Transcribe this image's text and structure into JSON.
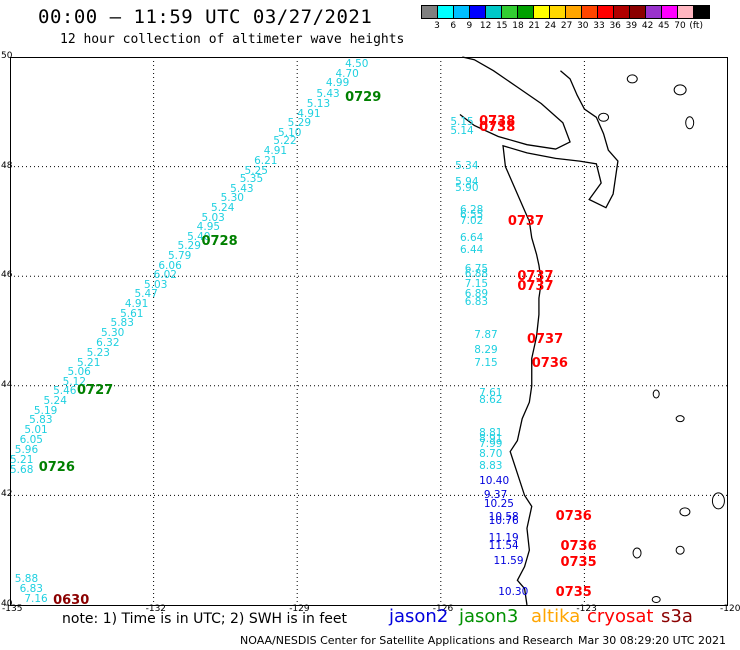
{
  "title": "00:00 – 11:59 UTC 03/27/2021",
  "subtitle": "12 hour collection of altimeter wave heights",
  "colorbar": {
    "colors": [
      "#808080",
      "#00ffff",
      "#00bfff",
      "#0000ff",
      "#00c8c8",
      "#32cd32",
      "#00a000",
      "#ffff00",
      "#ffd700",
      "#ffa500",
      "#ff4500",
      "#ff0000",
      "#b00000",
      "#8b0000",
      "#9932cc",
      "#ff00ff",
      "#ffb6c1",
      "#000000"
    ],
    "labels": [
      "3",
      "6",
      "9",
      "12",
      "15",
      "18",
      "21",
      "24",
      "27",
      "30",
      "33",
      "36",
      "39",
      "42",
      "45",
      "70"
    ],
    "unit": "(ft)"
  },
  "axes": {
    "lon_labels": [
      "-135",
      "-132",
      "-129",
      "-126",
      "-123",
      "-120"
    ],
    "lat_labels": [
      "50",
      "48",
      "46",
      "44",
      "42",
      "40"
    ],
    "lon_range": [
      -135,
      -120
    ],
    "lat_range": [
      40,
      50
    ]
  },
  "points": [
    {
      "v": "4.50",
      "lon": -128.0,
      "lat": 49.85,
      "c": "#1fd0e0"
    },
    {
      "v": "4.70",
      "lon": -128.2,
      "lat": 49.67,
      "c": "#1fd0e0"
    },
    {
      "v": "4.99",
      "lon": -128.4,
      "lat": 49.5,
      "c": "#1fd0e0"
    },
    {
      "v": "5.43",
      "lon": -128.6,
      "lat": 49.3,
      "c": "#1fd0e0"
    },
    {
      "v": "5.13",
      "lon": -128.8,
      "lat": 49.13,
      "c": "#1fd0e0"
    },
    {
      "v": "4.91",
      "lon": -129.0,
      "lat": 48.95,
      "c": "#1fd0e0"
    },
    {
      "v": "5.29",
      "lon": -129.2,
      "lat": 48.77,
      "c": "#1fd0e0"
    },
    {
      "v": "5.10",
      "lon": -129.4,
      "lat": 48.6,
      "c": "#1fd0e0"
    },
    {
      "v": "5.22",
      "lon": -129.5,
      "lat": 48.44,
      "c": "#1fd0e0"
    },
    {
      "v": "4.91",
      "lon": -129.7,
      "lat": 48.26,
      "c": "#1fd0e0"
    },
    {
      "v": "6.21",
      "lon": -129.9,
      "lat": 48.09,
      "c": "#1fd0e0"
    },
    {
      "v": "5.25",
      "lon": -130.1,
      "lat": 47.91,
      "c": "#1fd0e0"
    },
    {
      "v": "5.35",
      "lon": -130.2,
      "lat": 47.75,
      "c": "#1fd0e0"
    },
    {
      "v": "5.43",
      "lon": -130.4,
      "lat": 47.58,
      "c": "#1fd0e0"
    },
    {
      "v": "5.30",
      "lon": -130.6,
      "lat": 47.4,
      "c": "#1fd0e0"
    },
    {
      "v": "5.24",
      "lon": -130.8,
      "lat": 47.22,
      "c": "#1fd0e0"
    },
    {
      "v": "5.03",
      "lon": -131.0,
      "lat": 47.05,
      "c": "#1fd0e0"
    },
    {
      "v": "4.95",
      "lon": -131.1,
      "lat": 46.88,
      "c": "#1fd0e0"
    },
    {
      "v": "5.40",
      "lon": -131.3,
      "lat": 46.7,
      "c": "#1fd0e0"
    },
    {
      "v": "5.29",
      "lon": -131.5,
      "lat": 46.53,
      "c": "#1fd0e0"
    },
    {
      "v": "5.79",
      "lon": -131.7,
      "lat": 46.35,
      "c": "#1fd0e0"
    },
    {
      "v": "6.06",
      "lon": -131.9,
      "lat": 46.17,
      "c": "#1fd0e0"
    },
    {
      "v": "6.02",
      "lon": -132.0,
      "lat": 46.0,
      "c": "#1fd0e0"
    },
    {
      "v": "5.03",
      "lon": -132.2,
      "lat": 45.83,
      "c": "#1fd0e0"
    },
    {
      "v": "5.47",
      "lon": -132.4,
      "lat": 45.66,
      "c": "#1fd0e0"
    },
    {
      "v": "4.91",
      "lon": -132.6,
      "lat": 45.48,
      "c": "#1fd0e0"
    },
    {
      "v": "5.61",
      "lon": -132.7,
      "lat": 45.3,
      "c": "#1fd0e0"
    },
    {
      "v": "5.83",
      "lon": -132.9,
      "lat": 45.12,
      "c": "#1fd0e0"
    },
    {
      "v": "5.30",
      "lon": -133.1,
      "lat": 44.94,
      "c": "#1fd0e0"
    },
    {
      "v": "6.32",
      "lon": -133.2,
      "lat": 44.76,
      "c": "#1fd0e0"
    },
    {
      "v": "5.23",
      "lon": -133.4,
      "lat": 44.58,
      "c": "#1fd0e0"
    },
    {
      "v": "5.21",
      "lon": -133.6,
      "lat": 44.4,
      "c": "#1fd0e0"
    },
    {
      "v": "5.06",
      "lon": -133.8,
      "lat": 44.24,
      "c": "#1fd0e0"
    },
    {
      "v": "5.12",
      "lon": -133.9,
      "lat": 44.06,
      "c": "#1fd0e0"
    },
    {
      "v": "5.46",
      "lon": -134.1,
      "lat": 43.88,
      "c": "#1fd0e0"
    },
    {
      "v": "5.24",
      "lon": -134.3,
      "lat": 43.7,
      "c": "#1fd0e0"
    },
    {
      "v": "5.19",
      "lon": -134.5,
      "lat": 43.53,
      "c": "#1fd0e0"
    },
    {
      "v": "5.83",
      "lon": -134.6,
      "lat": 43.35,
      "c": "#1fd0e0"
    },
    {
      "v": "5.01",
      "lon": -134.7,
      "lat": 43.17,
      "c": "#1fd0e0"
    },
    {
      "v": "6.05",
      "lon": -134.8,
      "lat": 42.99,
      "c": "#1fd0e0"
    },
    {
      "v": "5.96",
      "lon": -134.9,
      "lat": 42.81,
      "c": "#1fd0e0"
    },
    {
      "v": "5.21",
      "lon": -135.0,
      "lat": 42.63,
      "c": "#1fd0e0"
    },
    {
      "v": "5.68",
      "lon": -135.0,
      "lat": 42.45,
      "c": "#1fd0e0"
    },
    {
      "v": "5.88",
      "lon": -134.9,
      "lat": 40.45,
      "c": "#1fd0e0"
    },
    {
      "v": "6.83",
      "lon": -134.8,
      "lat": 40.27,
      "c": "#1fd0e0"
    },
    {
      "v": "7.16",
      "lon": -134.7,
      "lat": 40.09,
      "c": "#1fd0e0"
    },
    {
      "v": "5.15",
      "lon": -125.8,
      "lat": 48.8,
      "c": "#1fd0e0"
    },
    {
      "v": "5.14",
      "lon": -125.8,
      "lat": 48.63,
      "c": "#1fd0e0"
    },
    {
      "v": "5.34",
      "lon": -125.7,
      "lat": 48.0,
      "c": "#1fd0e0"
    },
    {
      "v": "5.94",
      "lon": -125.7,
      "lat": 47.7,
      "c": "#1fd0e0"
    },
    {
      "v": "5.90",
      "lon": -125.7,
      "lat": 47.59,
      "c": "#1fd0e0"
    },
    {
      "v": "6.28",
      "lon": -125.6,
      "lat": 47.19,
      "c": "#1fd0e0"
    },
    {
      "v": "6.55",
      "lon": -125.6,
      "lat": 47.09,
      "c": "#1fd0e0"
    },
    {
      "v": "7.02",
      "lon": -125.6,
      "lat": 46.98,
      "c": "#1fd0e0"
    },
    {
      "v": "6.64",
      "lon": -125.6,
      "lat": 46.67,
      "c": "#1fd0e0"
    },
    {
      "v": "6.44",
      "lon": -125.6,
      "lat": 46.46,
      "c": "#1fd0e0"
    },
    {
      "v": "6.75",
      "lon": -125.5,
      "lat": 46.12,
      "c": "#1fd0e0"
    },
    {
      "v": "6.88",
      "lon": -125.5,
      "lat": 46.02,
      "c": "#1fd0e0"
    },
    {
      "v": "7.15",
      "lon": -125.5,
      "lat": 45.84,
      "c": "#1fd0e0"
    },
    {
      "v": "6.89",
      "lon": -125.5,
      "lat": 45.66,
      "c": "#1fd0e0"
    },
    {
      "v": "6.83",
      "lon": -125.5,
      "lat": 45.52,
      "c": "#1fd0e0"
    },
    {
      "v": "7.87",
      "lon": -125.3,
      "lat": 44.91,
      "c": "#1fd0e0"
    },
    {
      "v": "8.29",
      "lon": -125.3,
      "lat": 44.64,
      "c": "#1fd0e0"
    },
    {
      "v": "7.15",
      "lon": -125.3,
      "lat": 44.4,
      "c": "#1fd0e0"
    },
    {
      "v": "7.61",
      "lon": -125.2,
      "lat": 43.85,
      "c": "#1fd0e0"
    },
    {
      "v": "8.62",
      "lon": -125.2,
      "lat": 43.73,
      "c": "#1fd0e0"
    },
    {
      "v": "8.81",
      "lon": -125.2,
      "lat": 43.12,
      "c": "#1fd0e0"
    },
    {
      "v": "8.91",
      "lon": -125.2,
      "lat": 43.01,
      "c": "#1fd0e0"
    },
    {
      "v": "7.99",
      "lon": -125.2,
      "lat": 42.92,
      "c": "#1fd0e0"
    },
    {
      "v": "8.70",
      "lon": -125.2,
      "lat": 42.73,
      "c": "#1fd0e0"
    },
    {
      "v": "8.83",
      "lon": -125.2,
      "lat": 42.52,
      "c": "#1fd0e0"
    },
    {
      "v": "10.40",
      "lon": -125.2,
      "lat": 42.25,
      "c": "#0000dd"
    },
    {
      "v": "9.37",
      "lon": -125.1,
      "lat": 41.98,
      "c": "#0000dd"
    },
    {
      "v": "10.25",
      "lon": -125.1,
      "lat": 41.82,
      "c": "#0000dd"
    },
    {
      "v": "10.58",
      "lon": -125.0,
      "lat": 41.59,
      "c": "#0000dd"
    },
    {
      "v": "10.76",
      "lon": -125.0,
      "lat": 41.52,
      "c": "#0000dd"
    },
    {
      "v": "11.19",
      "lon": -125.0,
      "lat": 41.2,
      "c": "#0000dd"
    },
    {
      "v": "11.54",
      "lon": -125.0,
      "lat": 41.06,
      "c": "#0000dd"
    },
    {
      "v": "11.59",
      "lon": -124.9,
      "lat": 40.78,
      "c": "#0000dd"
    },
    {
      "v": "10.30",
      "lon": -124.8,
      "lat": 40.22,
      "c": "#0000dd"
    }
  ],
  "stamps": [
    {
      "t": "0729",
      "lon": -128.0,
      "lat": 49.25,
      "c": "#008000"
    },
    {
      "t": "0728",
      "lon": -131.0,
      "lat": 46.62,
      "c": "#008000"
    },
    {
      "t": "0727",
      "lon": -133.6,
      "lat": 43.9,
      "c": "#008000"
    },
    {
      "t": "0726",
      "lon": -134.4,
      "lat": 42.5,
      "c": "#008000"
    },
    {
      "t": "0630",
      "lon": -134.1,
      "lat": 40.07,
      "c": "#8b0000"
    },
    {
      "t": "0738",
      "lon": -125.2,
      "lat": 48.82,
      "c": "#ff0000"
    },
    {
      "t": "0738",
      "lon": -125.2,
      "lat": 48.7,
      "c": "#ff0000"
    },
    {
      "t": "0737",
      "lon": -124.6,
      "lat": 46.98,
      "c": "#ff0000"
    },
    {
      "t": "0737",
      "lon": -124.4,
      "lat": 45.98,
      "c": "#ff0000"
    },
    {
      "t": "0737",
      "lon": -124.4,
      "lat": 45.8,
      "c": "#ff0000"
    },
    {
      "t": "0737",
      "lon": -124.2,
      "lat": 44.83,
      "c": "#ff0000"
    },
    {
      "t": "0736",
      "lon": -124.1,
      "lat": 44.4,
      "c": "#ff0000"
    },
    {
      "t": "0736",
      "lon": -123.6,
      "lat": 41.6,
      "c": "#ff0000"
    },
    {
      "t": "0736",
      "lon": -123.5,
      "lat": 41.06,
      "c": "#ff0000"
    },
    {
      "t": "0735",
      "lon": -123.5,
      "lat": 40.77,
      "c": "#ff0000"
    },
    {
      "t": "0735",
      "lon": -123.6,
      "lat": 40.22,
      "c": "#ff0000"
    }
  ],
  "note": "note:  1) Time is in UTC;  2) SWH is in feet",
  "legend": [
    {
      "name": "jason2",
      "color": "#0000dd"
    },
    {
      "name": "jason3",
      "color": "#009000"
    },
    {
      "name": "altika",
      "color": "#ffa500"
    },
    {
      "name": "cryosat",
      "color": "#ff0000"
    },
    {
      "name": "s3a",
      "color": "#8b0000"
    }
  ],
  "credit_left": "NOAA/NESDIS Center for Satellite Applications and Research",
  "credit_right": "Mar 30 08:29:20 UTC 2021"
}
